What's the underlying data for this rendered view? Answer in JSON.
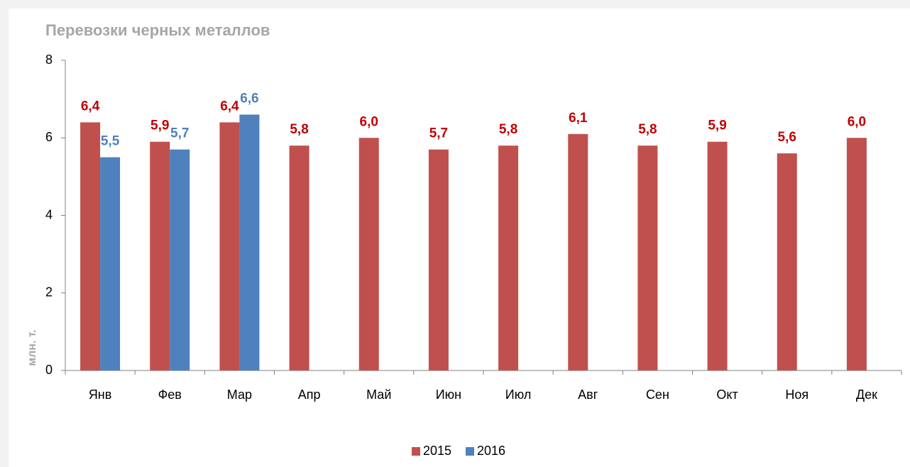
{
  "chart_data": {
    "type": "bar",
    "title": "Перевозки черных металлов",
    "y_label": "млн. т.",
    "categories": [
      "Янв",
      "Фев",
      "Мар",
      "Апр",
      "Май",
      "Июн",
      "Июл",
      "Авг",
      "Сен",
      "Окт",
      "Ноя",
      "Дек"
    ],
    "series": [
      {
        "name": "2015",
        "color": "#c0504d",
        "label_color": "#c00000",
        "values": [
          6.4,
          5.9,
          6.4,
          5.8,
          6.0,
          5.7,
          5.8,
          6.1,
          5.8,
          5.9,
          5.6,
          6.0
        ],
        "value_labels": [
          "6,4",
          "5,9",
          "6,4",
          "5,8",
          "6,0",
          "5,7",
          "5,8",
          "6,1",
          "5,8",
          "5,9",
          "5,6",
          "6,0"
        ]
      },
      {
        "name": "2016",
        "color": "#4f81bd",
        "label_color": "#4f81bd",
        "values": [
          5.5,
          5.7,
          6.6,
          null,
          null,
          null,
          null,
          null,
          null,
          null,
          null,
          null
        ],
        "value_labels": [
          "5,5",
          "5,7",
          "6,6",
          null,
          null,
          null,
          null,
          null,
          null,
          null,
          null,
          null
        ]
      }
    ],
    "ylim": [
      0,
      8
    ],
    "yticks": [
      0,
      2,
      4,
      6,
      8
    ],
    "legend": "bottom"
  }
}
